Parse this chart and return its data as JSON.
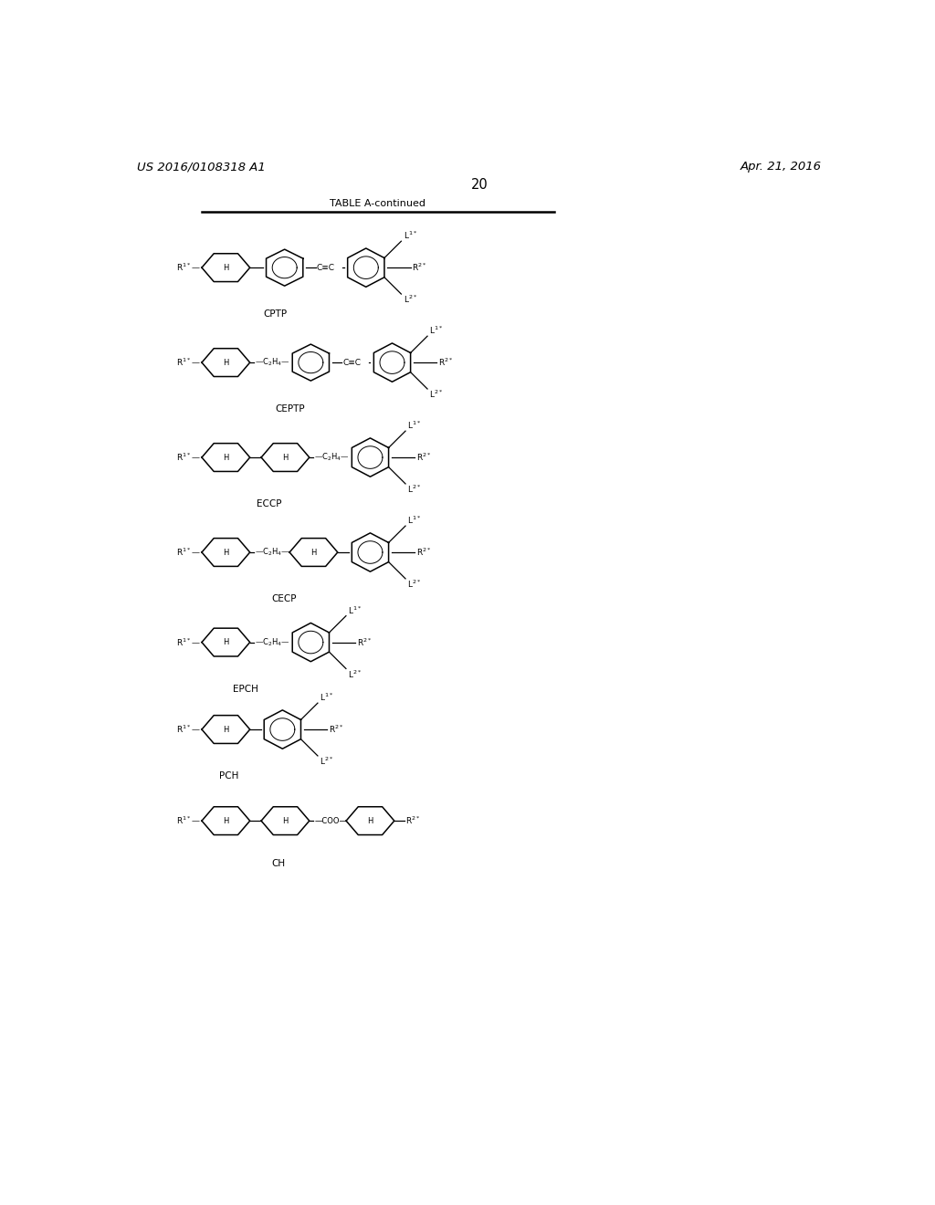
{
  "header_left": "US 2016/0108318 A1",
  "header_right": "Apr. 21, 2016",
  "page_number": "20",
  "table_title": "TABLE A-continued",
  "background_color": "#ffffff",
  "line_color": "#000000",
  "font_size_header": 9.5,
  "font_size_label": 8.0,
  "font_size_struct_name": 7.5,
  "font_size_subscript": 6.5,
  "structures": [
    {
      "name": "CPTP",
      "y": 11.45
    },
    {
      "name": "CEPTP",
      "y": 10.1
    },
    {
      "name": "ECCP",
      "y": 8.75
    },
    {
      "name": "CECP",
      "y": 7.4
    },
    {
      "name": "EPCH",
      "y": 6.12
    },
    {
      "name": "PCH",
      "y": 4.88
    },
    {
      "name": "CH",
      "y": 3.58
    }
  ]
}
